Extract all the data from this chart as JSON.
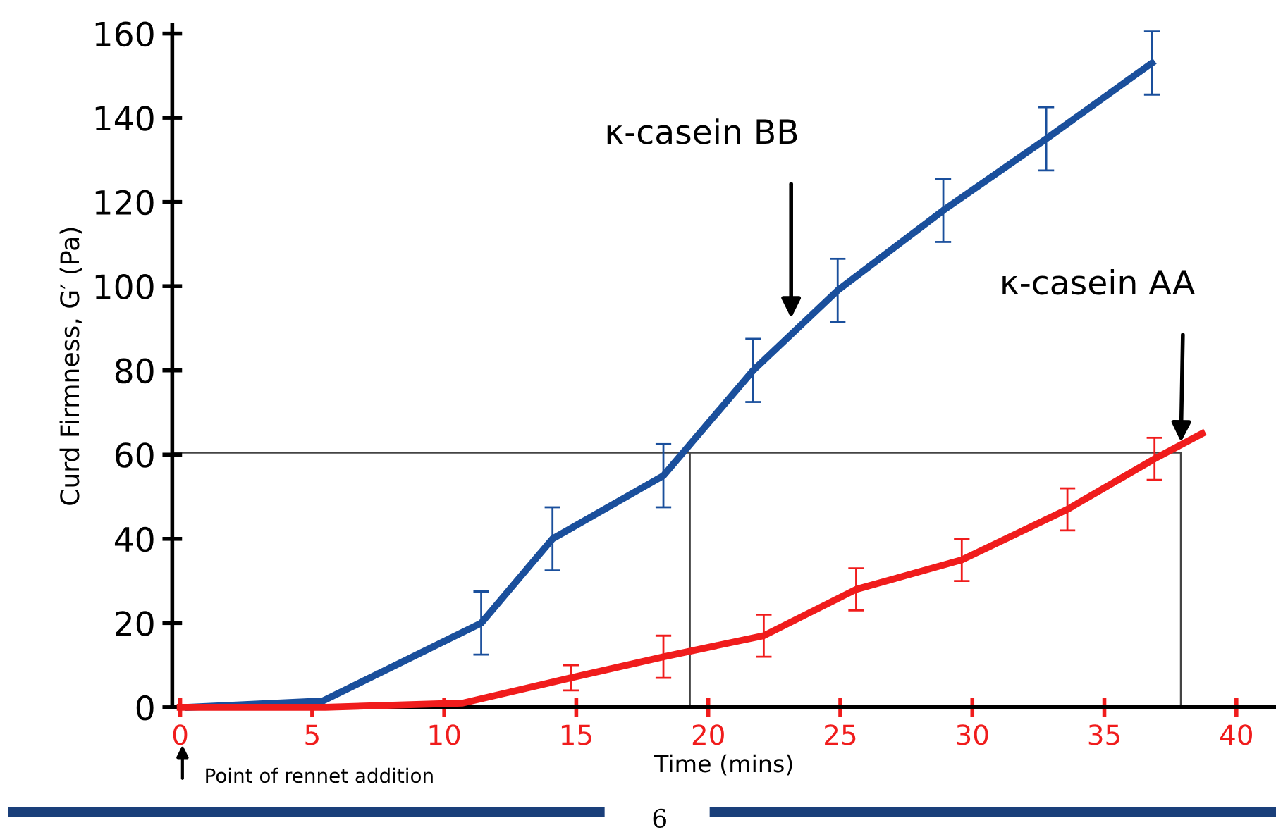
{
  "chart_data": {
    "type": "line",
    "xlabel": "Time (mins)",
    "ylabel": "Curd Firmness, G′ (Pa)",
    "xlim": [
      -0.3,
      41.5
    ],
    "ylim": [
      0,
      162
    ],
    "xticks": [
      0,
      5,
      10,
      15,
      20,
      25,
      30,
      35,
      40
    ],
    "yticks": [
      0,
      20,
      40,
      60,
      80,
      100,
      120,
      140,
      160
    ],
    "grid": false,
    "legend": false,
    "marker": "none",
    "line_style": "solid",
    "series": [
      {
        "color": "#1a4f9c",
        "x": [
          0.3,
          5.4,
          11.4,
          14.1,
          18.3,
          21.7,
          24.9,
          28.9,
          32.8,
          36.8
        ],
        "values": [
          0,
          1.5,
          20,
          40,
          55,
          80,
          99,
          118,
          135,
          153
        ],
        "errors": [
          null,
          null,
          7.5,
          7.5,
          7.5,
          7.5,
          7.5,
          7.5,
          7.5,
          7.5
        ]
      },
      {
        "color": "#f01c1c",
        "x": [
          0,
          5.5,
          10.7,
          14.8,
          18.3,
          22.1,
          25.6,
          29.6,
          33.6,
          36.9,
          38.7
        ],
        "values": [
          0,
          0,
          1,
          7,
          12,
          17,
          28,
          35,
          47,
          59,
          65
        ],
        "errors": [
          null,
          null,
          null,
          3,
          5,
          5,
          5,
          5,
          5,
          5,
          null
        ]
      }
    ],
    "ref_lines": [
      {
        "axis": "y",
        "value": 60.5,
        "color": "#444444"
      },
      {
        "axis": "x",
        "value": 19.3,
        "color": "#444444"
      },
      {
        "axis": "x",
        "value": 37.9,
        "color": "#444444"
      }
    ],
    "annotations": [
      "κ-casein BB",
      {
        "text": "κ-casein AA",
        "x": 37.9,
        "y": 63
      },
      "Point of rennet addition",
      "6"
    ]
  }
}
